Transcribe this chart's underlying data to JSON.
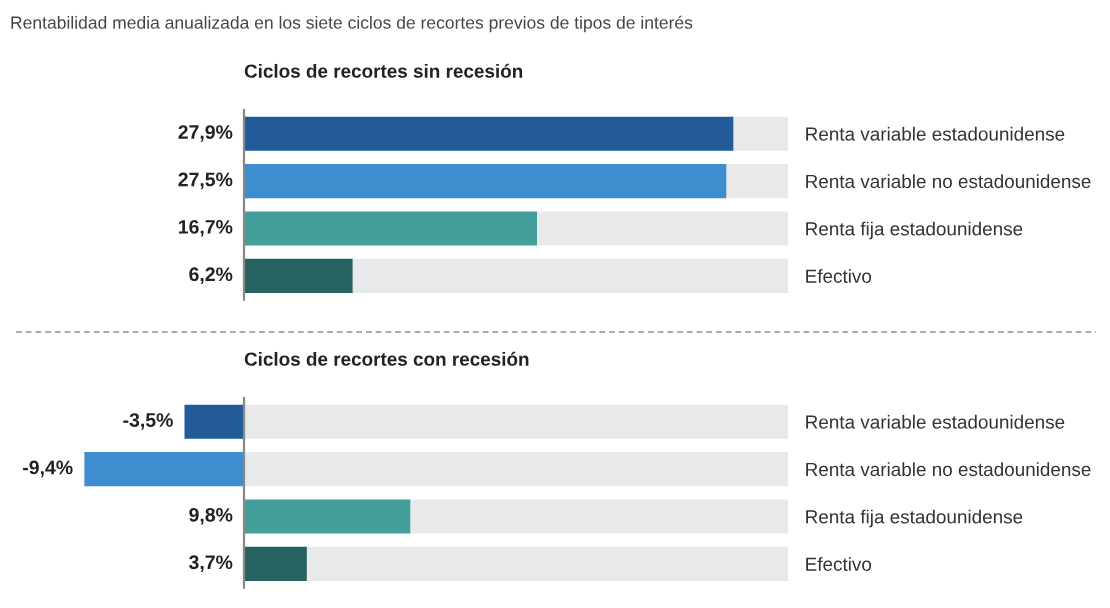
{
  "chart_data": [
    {
      "type": "bar",
      "orientation": "horizontal",
      "stacked": true,
      "title": "Rentabilidad media anualizada en los siete ciclos de recortes previos de tipos de interés",
      "subtitle": "Ciclos de recortes sin recesión",
      "categories": [
        "Renta variable estadounidense",
        "Renta variable no estadounidense",
        "Renta fija estadounidense",
        "Efectivo"
      ],
      "tick_labels": "y",
      "grid": false,
      "series": [
        {
          "colors": [
            "#235b9a",
            "#3d8dcf",
            "#449f9b",
            "#266360"
          ],
          "values": [
            27.9,
            27.5,
            16.7,
            6.2
          ],
          "value_labels": [
            "27,9%",
            "27,5%",
            "16,7%",
            "6,2%"
          ]
        },
        {
          "color": "#e8e9eb",
          "values": [
            3.1,
            3.5,
            14.3,
            24.8
          ]
        }
      ]
    },
    {
      "type": "bar",
      "orientation": "horizontal",
      "stacked": true,
      "subtitle": "Ciclos de recortes con recesión",
      "categories": [
        "Renta variable estadounidense",
        "Renta variable no estadounidense",
        "Renta fija estadounidense",
        "Efectivo"
      ],
      "tick_labels": "y",
      "grid": false,
      "series": [
        {
          "colors": [
            "#235b9a",
            "#3d8dcf",
            "#449f9b",
            "#266360"
          ],
          "values": [
            -3.5,
            -9.4,
            9.8,
            3.7
          ],
          "value_labels": [
            "-3,5%",
            "-9,4%",
            "9,8%",
            "3,7%"
          ]
        },
        {
          "color": "#e8e9eb",
          "values": [
            32,
            32,
            22.2,
            28.3
          ]
        }
      ]
    }
  ]
}
